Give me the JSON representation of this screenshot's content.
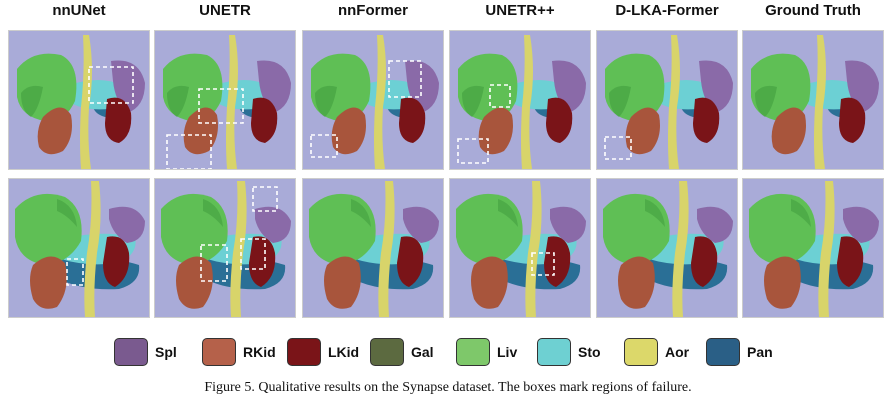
{
  "columns": [
    "nnUNet",
    "UNETR",
    "nnFormer",
    "UNETR++",
    "D-LKA-Former",
    "Ground Truth"
  ],
  "legend": [
    {
      "label": "Spl",
      "color": "#7a5a8f"
    },
    {
      "label": "RKid",
      "color": "#b5614a"
    },
    {
      "label": "LKid",
      "color": "#7a1418"
    },
    {
      "label": "Gal",
      "color": "#5c6a40"
    },
    {
      "label": "Liv",
      "color": "#7ec86a"
    },
    {
      "label": "Sto",
      "color": "#6ed0d2"
    },
    {
      "label": "Aor",
      "color": "#dcd86a"
    },
    {
      "label": "Pan",
      "color": "#2a5f86"
    }
  ],
  "caption": "Figure 5. Qualitative results on the Synapse dataset. The boxes mark regions of failure.",
  "colors": {
    "background": "#a9abd8",
    "liver": "#5fbf55",
    "liver_dark": "#3e9a3c",
    "stomach": "#6cd0d4",
    "spleen": "#8a6aa8",
    "rkid": "#a8553c",
    "lkid": "#7a1418",
    "aorta": "#d8d46a",
    "pancreas": "#2a6f96"
  }
}
